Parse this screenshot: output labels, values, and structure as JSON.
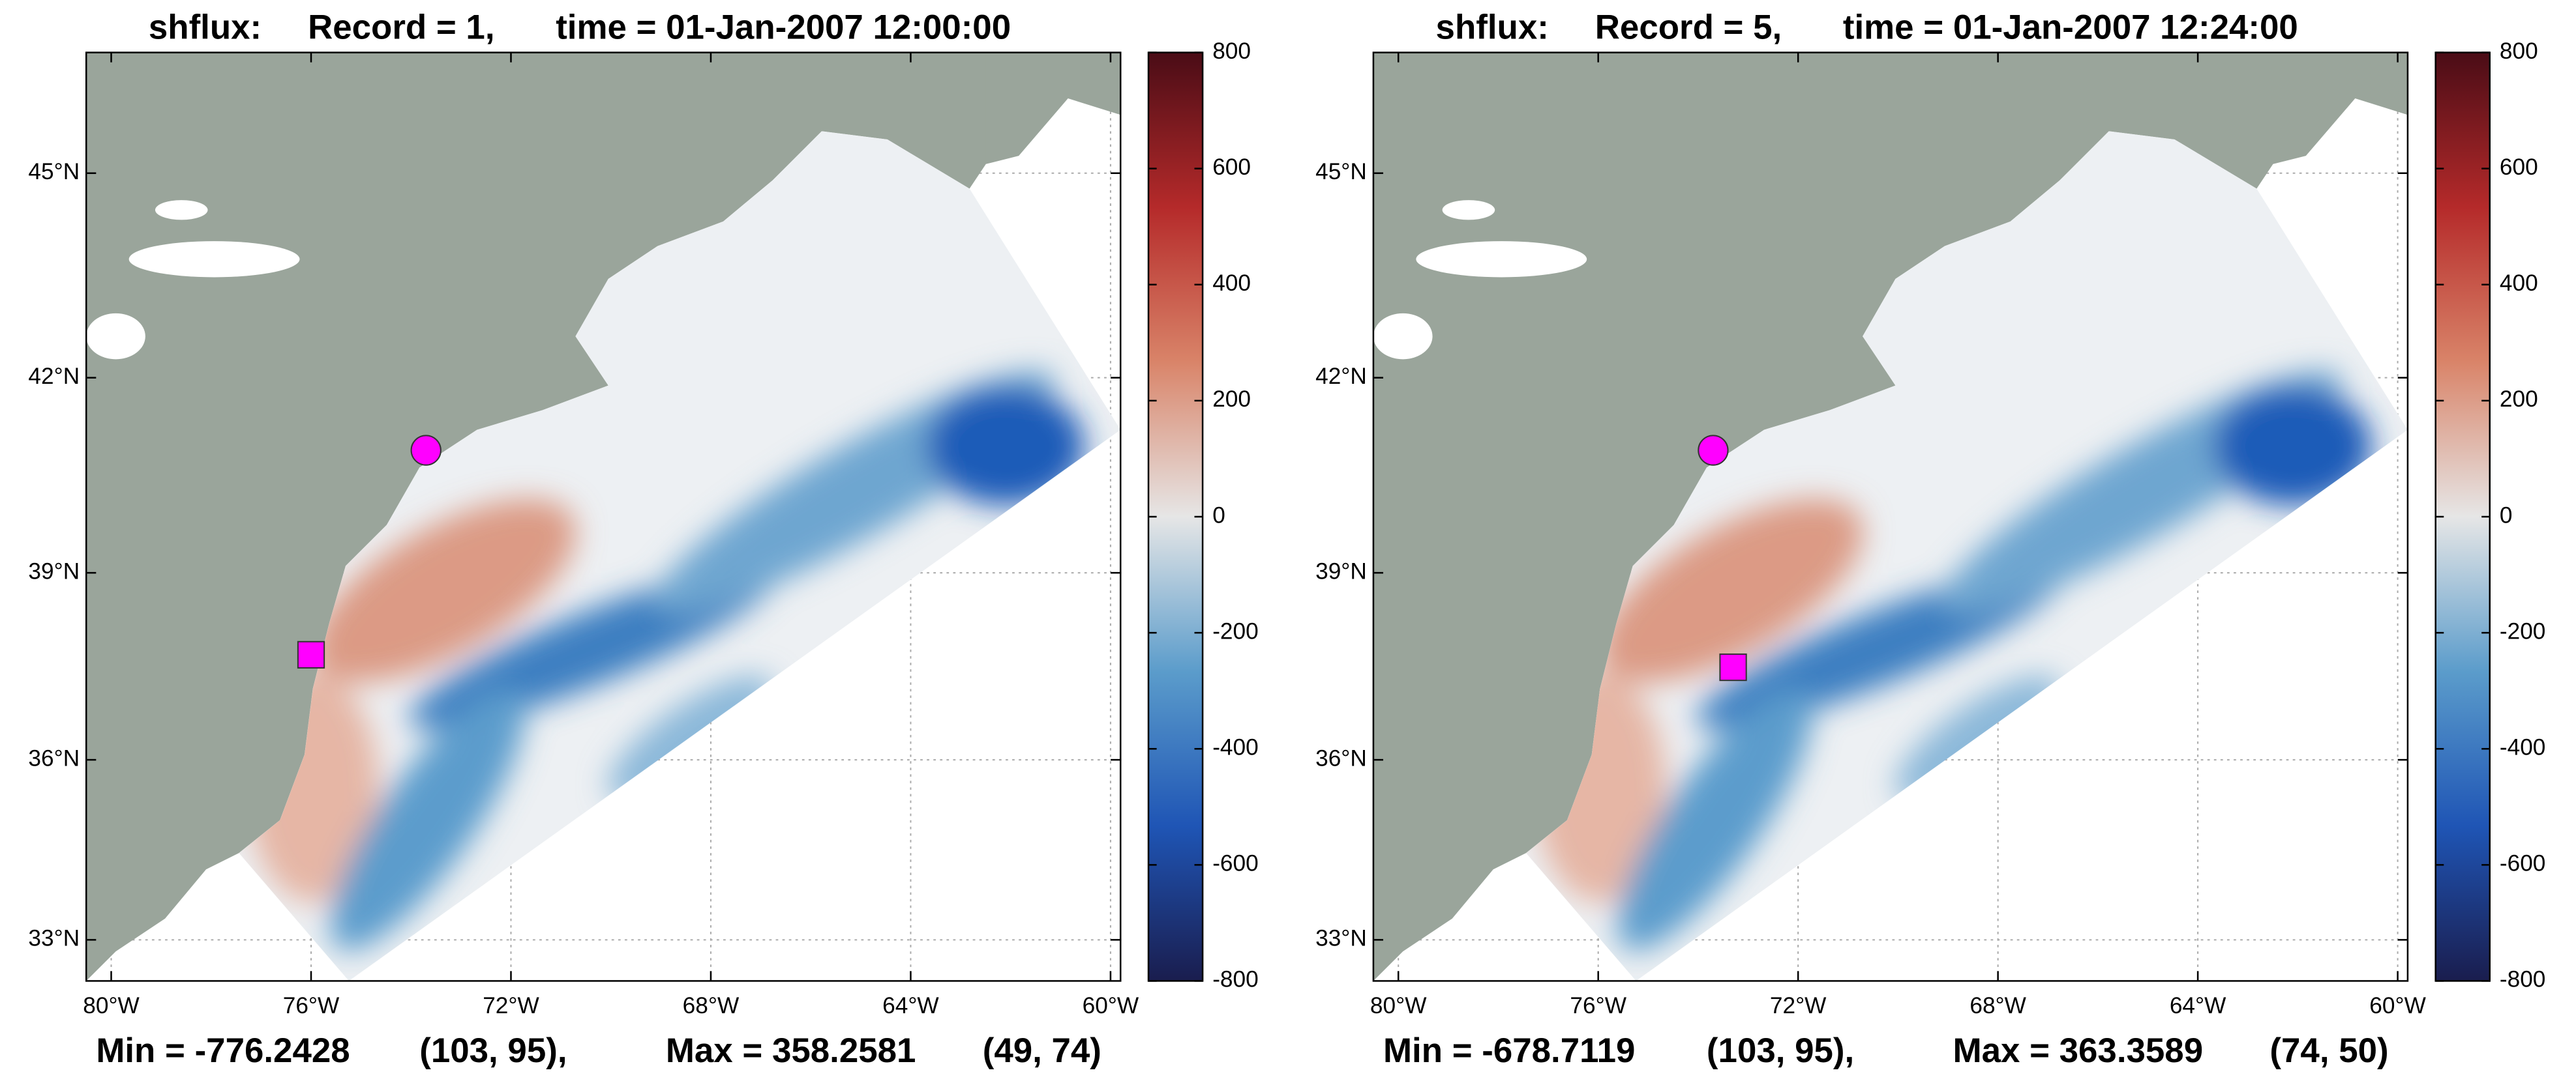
{
  "panels": [
    {
      "title": {
        "variable": "shflux:",
        "record": "Record = 1,",
        "time": "time = 01-Jan-2007 12:00:00"
      },
      "xlim": [
        -80.5,
        -59.8
      ],
      "ylim": [
        32.3,
        46.7
      ],
      "xticks": [
        {
          "value": -80,
          "label": "80°W"
        },
        {
          "value": -76,
          "label": "76°W"
        },
        {
          "value": -72,
          "label": "72°W"
        },
        {
          "value": -68,
          "label": "68°W"
        },
        {
          "value": -64,
          "label": "64°W"
        },
        {
          "value": -60,
          "label": "60°W"
        }
      ],
      "yticks": [
        {
          "value": 33,
          "label": "33°N"
        },
        {
          "value": 36,
          "label": "36°N"
        },
        {
          "value": 39,
          "label": "39°N"
        },
        {
          "value": 42,
          "label": "42°N"
        },
        {
          "value": 45,
          "label": "45°N"
        }
      ],
      "grid": true,
      "colorbar": {
        "clim": [
          -800,
          800
        ],
        "ticks": [
          -800,
          -600,
          -400,
          -200,
          0,
          200,
          400,
          600,
          800
        ],
        "colors": [
          "#1a1d4e",
          "#1f55b5",
          "#5b9ccb",
          "#e6e6e6",
          "#d98469",
          "#b52a2a",
          "#4a0c16"
        ]
      },
      "markers": [
        {
          "shape": "circle",
          "lon": -73.7,
          "lat": 40.9,
          "color": "#ff00ff"
        },
        {
          "shape": "square",
          "lon": -76.0,
          "lat": 37.7,
          "color": "#ff00ff"
        }
      ],
      "footer": {
        "min": "Min = -776.2428",
        "min_index": "(103, 95),",
        "max": "Max = 358.2581",
        "max_index": "(49, 74)"
      }
    },
    {
      "title": {
        "variable": "shflux:",
        "record": "Record = 5,",
        "time": "time = 01-Jan-2007 12:24:00"
      },
      "xlim": [
        -80.5,
        -59.8
      ],
      "ylim": [
        32.3,
        46.7
      ],
      "xticks": [
        {
          "value": -80,
          "label": "80°W"
        },
        {
          "value": -76,
          "label": "76°W"
        },
        {
          "value": -72,
          "label": "72°W"
        },
        {
          "value": -68,
          "label": "68°W"
        },
        {
          "value": -64,
          "label": "64°W"
        },
        {
          "value": -60,
          "label": "60°W"
        }
      ],
      "yticks": [
        {
          "value": 33,
          "label": "33°N"
        },
        {
          "value": 36,
          "label": "36°N"
        },
        {
          "value": 39,
          "label": "39°N"
        },
        {
          "value": 42,
          "label": "42°N"
        },
        {
          "value": 45,
          "label": "45°N"
        }
      ],
      "grid": true,
      "colorbar": {
        "clim": [
          -800,
          800
        ],
        "ticks": [
          -800,
          -600,
          -400,
          -200,
          0,
          200,
          400,
          600,
          800
        ],
        "colors": [
          "#1a1d4e",
          "#1f55b5",
          "#5b9ccb",
          "#e6e6e6",
          "#d98469",
          "#b52a2a",
          "#4a0c16"
        ]
      },
      "markers": [
        {
          "shape": "circle",
          "lon": -73.7,
          "lat": 40.9,
          "color": "#ff00ff"
        },
        {
          "shape": "square",
          "lon": -73.3,
          "lat": 37.5,
          "color": "#ff00ff"
        }
      ],
      "footer": {
        "min": "Min = -678.7119",
        "min_index": "(103, 95),",
        "max": "Max = 363.3589",
        "max_index": "(74, 50)"
      }
    }
  ]
}
